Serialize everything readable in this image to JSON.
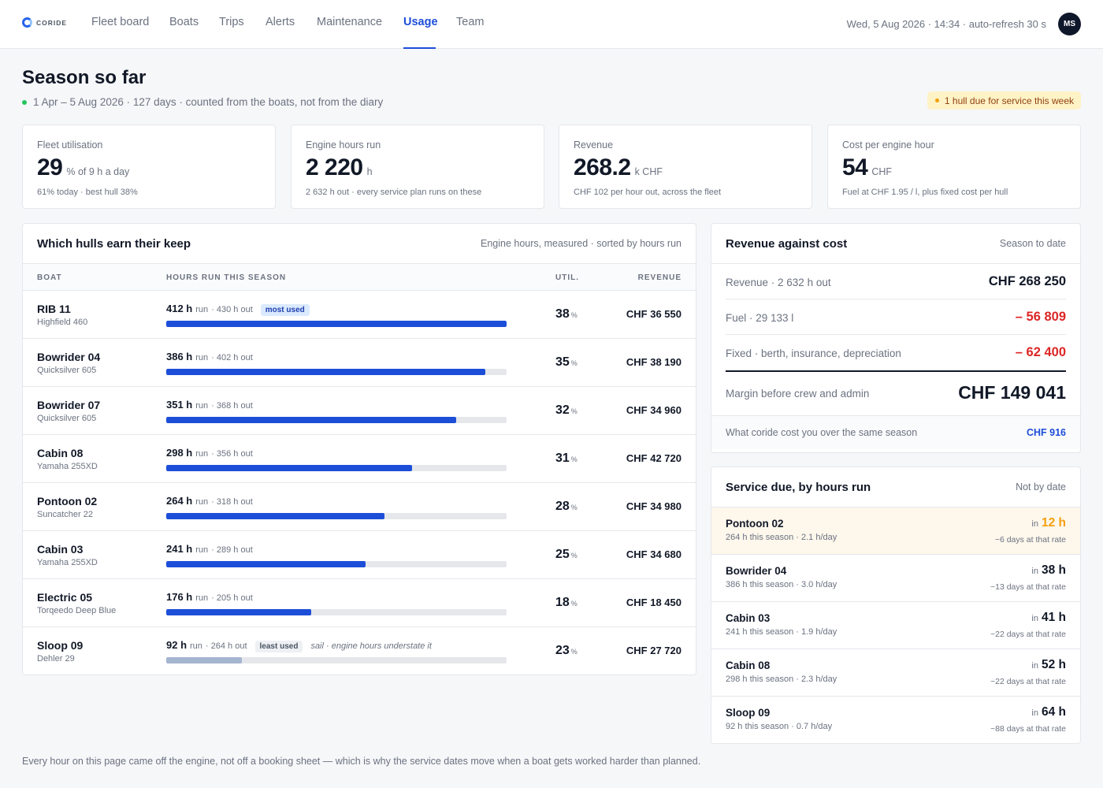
{
  "nav": {
    "logo": "CORIDE",
    "items": [
      "Fleet board",
      "Boats",
      "Trips",
      "Alerts",
      "Maintenance",
      "Usage",
      "Team"
    ],
    "active": "Usage",
    "meta": "Wed, 5 Aug 2026 · 14:34 · auto-refresh 30 s",
    "avatar": "MS"
  },
  "header": {
    "title": "Season so far",
    "subtitle": "1 Apr – 5 Aug 2026 · 127 days · counted from the boats, not from the diary",
    "service_pill": "1 hull due for service this week"
  },
  "kpis": [
    {
      "label": "Fleet utilisation",
      "value": "29",
      "unit": "% of 9 h a day",
      "note": "61% today · best hull 38%"
    },
    {
      "label": "Engine hours run",
      "value": "2 220",
      "unit": "h",
      "note": "2 632 h out · every service plan runs on these"
    },
    {
      "label": "Revenue",
      "value": "268.2",
      "unit": "k CHF",
      "note": "CHF 102 per hour out, across the fleet"
    },
    {
      "label": "Cost per engine hour",
      "value": "54",
      "unit": "CHF",
      "note": "Fuel at CHF 1.95 / l, plus fixed cost per hull"
    }
  ],
  "hulls": {
    "title": "Which hulls earn their keep",
    "subtitle": "Engine hours, measured · sorted by hours run",
    "columns": {
      "boat": "BOAT",
      "hours": "HOURS RUN THIS SEASON",
      "util": "UTIL.",
      "revenue": "REVENUE"
    },
    "rows": [
      {
        "name": "RIB 11",
        "model": "Highfield 460",
        "run": "412 h",
        "run_label": "run",
        "out": "· 430 h out",
        "tag": "most used",
        "tag_kind": "most",
        "note": "",
        "share": 1.0,
        "muted": false,
        "util": "38",
        "util_unit": "%",
        "revenue": "CHF 36 550"
      },
      {
        "name": "Bowrider 04",
        "model": "Quicksilver 605",
        "run": "386 h",
        "run_label": "run",
        "out": "· 402 h out",
        "tag": "",
        "tag_kind": "",
        "note": "",
        "share": 0.937,
        "muted": false,
        "util": "35",
        "util_unit": "%",
        "revenue": "CHF 38 190"
      },
      {
        "name": "Bowrider 07",
        "model": "Quicksilver 605",
        "run": "351 h",
        "run_label": "run",
        "out": "· 368 h out",
        "tag": "",
        "tag_kind": "",
        "note": "",
        "share": 0.852,
        "muted": false,
        "util": "32",
        "util_unit": "%",
        "revenue": "CHF 34 960"
      },
      {
        "name": "Cabin 08",
        "model": "Yamaha 255XD",
        "run": "298 h",
        "run_label": "run",
        "out": "· 356 h out",
        "tag": "",
        "tag_kind": "",
        "note": "",
        "share": 0.723,
        "muted": false,
        "util": "31",
        "util_unit": "%",
        "revenue": "CHF 42 720"
      },
      {
        "name": "Pontoon 02",
        "model": "Suncatcher 22",
        "run": "264 h",
        "run_label": "run",
        "out": "· 318 h out",
        "tag": "",
        "tag_kind": "",
        "note": "",
        "share": 0.641,
        "muted": false,
        "util": "28",
        "util_unit": "%",
        "revenue": "CHF 34 980"
      },
      {
        "name": "Cabin 03",
        "model": "Yamaha 255XD",
        "run": "241 h",
        "run_label": "run",
        "out": "· 289 h out",
        "tag": "",
        "tag_kind": "",
        "note": "",
        "share": 0.585,
        "muted": false,
        "util": "25",
        "util_unit": "%",
        "revenue": "CHF 34 680"
      },
      {
        "name": "Electric 05",
        "model": "Torqeedo Deep Blue",
        "run": "176 h",
        "run_label": "run",
        "out": "· 205 h out",
        "tag": "",
        "tag_kind": "",
        "note": "",
        "share": 0.427,
        "muted": false,
        "util": "18",
        "util_unit": "%",
        "revenue": "CHF 18 450"
      },
      {
        "name": "Sloop 09",
        "model": "Dehler 29",
        "run": "92 h",
        "run_label": "run",
        "out": "· 264 h out",
        "tag": "least used",
        "tag_kind": "least",
        "note": "sail · engine hours understate it",
        "share": 0.223,
        "muted": true,
        "util": "23",
        "util_unit": "%",
        "revenue": "CHF 27 720"
      }
    ]
  },
  "revenue_cost": {
    "title": "Revenue against cost",
    "subtitle": "Season to date",
    "lines": [
      {
        "label": "Revenue · 2 632 h out",
        "value": "CHF 268 250",
        "negative": false
      },
      {
        "label": "Fuel · 29 133 l",
        "value": "– 56 809",
        "negative": true
      },
      {
        "label": "Fixed · berth, insurance, depreciation",
        "value": "– 62 400",
        "negative": true
      }
    ],
    "margin_label": "Margin before crew and admin",
    "margin_value": "CHF 149 041",
    "footer_label": "What coride cost you over the same season",
    "footer_value": "CHF 916"
  },
  "service": {
    "title": "Service due, by hours run",
    "subtitle": "Not by date",
    "in_label": "in",
    "rows": [
      {
        "name": "Pontoon 02",
        "detail": "264 h this season · 2.1 h/day",
        "hours": "12 h",
        "days": "~6 days at that rate",
        "hot": true
      },
      {
        "name": "Bowrider 04",
        "detail": "386 h this season · 3.0 h/day",
        "hours": "38 h",
        "days": "~13 days at that rate",
        "hot": false
      },
      {
        "name": "Cabin 03",
        "detail": "241 h this season · 1.9 h/day",
        "hours": "41 h",
        "days": "~22 days at that rate",
        "hot": false
      },
      {
        "name": "Cabin 08",
        "detail": "298 h this season · 2.3 h/day",
        "hours": "52 h",
        "days": "~22 days at that rate",
        "hot": false
      },
      {
        "name": "Sloop 09",
        "detail": "92 h this season · 0.7 h/day",
        "hours": "64 h",
        "days": "~88 days at that rate",
        "hot": false
      }
    ]
  },
  "footnote": "Every hour on this page came off the engine, not off a booking sheet — which is why the service dates move when a boat gets worked harder than planned."
}
